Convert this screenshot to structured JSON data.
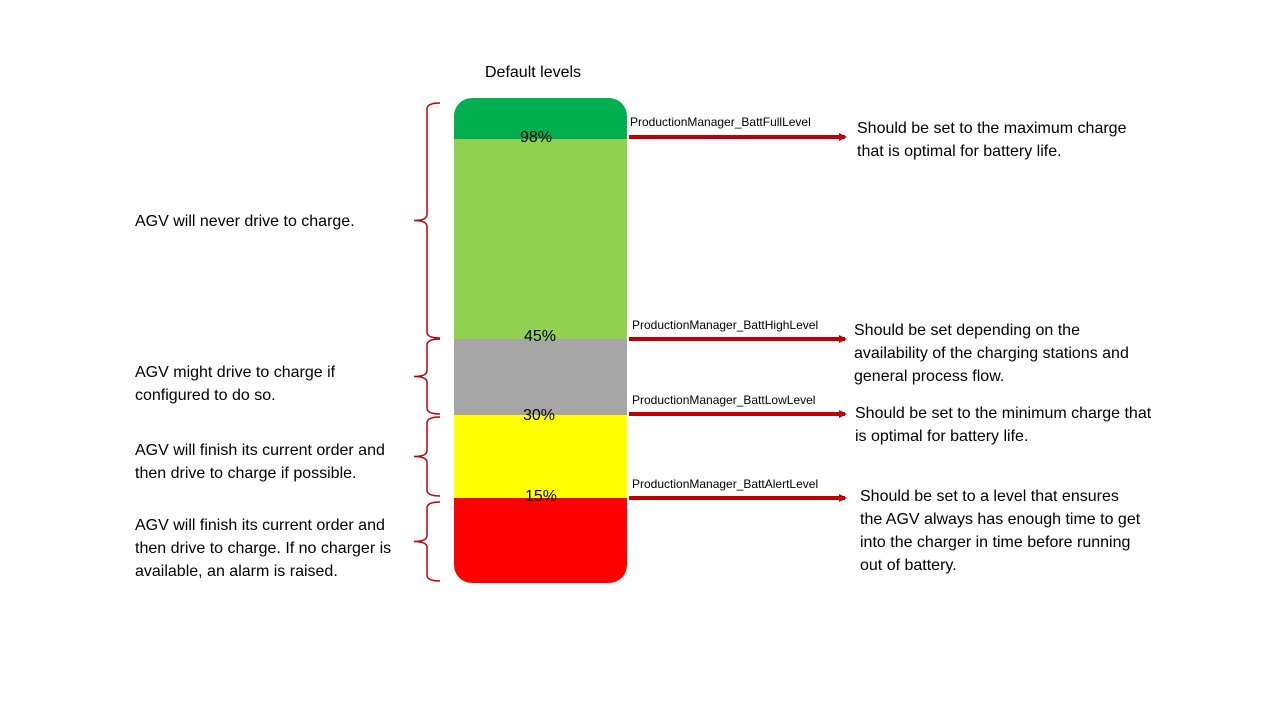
{
  "diagram": {
    "title": "Default levels",
    "colors": {
      "full": "#00b050",
      "high": "#92d050",
      "mid": "#a6a6a6",
      "low": "#ffff00",
      "alert": "#ff0000",
      "arrow": "#c00000",
      "brace": "#c00000"
    },
    "levels": [
      {
        "percent": "98%",
        "parameter": "ProductionManager_BattFullLevel",
        "note": "Should be set to the maximum charge that is optimal for battery life."
      },
      {
        "percent": "45%",
        "parameter": "ProductionManager_BattHighLevel",
        "note": "Should be set depending on the availability of the charging stations and general process flow."
      },
      {
        "percent": "30%",
        "parameter": "ProductionManager_BattLowLevel",
        "note": "Should be set to the minimum charge that is optimal for battery life."
      },
      {
        "percent": "15%",
        "parameter": "ProductionManager_BattAlertLevel",
        "note": "Should be set to a level that ensures the AGV always has enough time to get into the charger in time before running out of battery."
      }
    ],
    "ranges": [
      {
        "text": "AGV will never drive to charge."
      },
      {
        "text": "AGV might drive to charge if configured to do so."
      },
      {
        "text": "AGV will finish its current order and then drive to charge if possible."
      },
      {
        "text": "AGV will finish its current order and then drive to charge. If no charger is available, an alarm is raised."
      }
    ]
  }
}
